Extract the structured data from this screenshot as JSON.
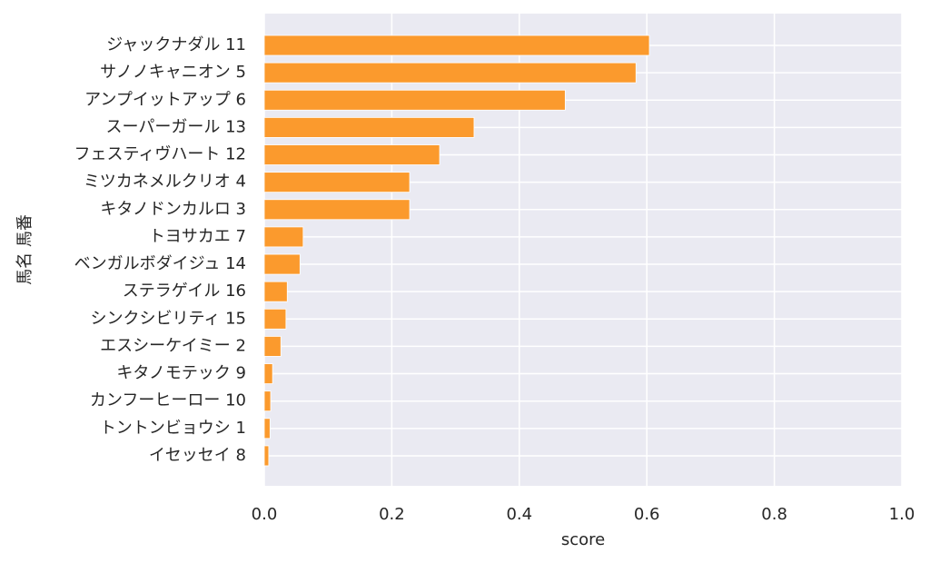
{
  "chart_data": {
    "type": "barh",
    "categories": [
      "ジャックナダル 11",
      "サノノキャニオン 5",
      "アンプイットアップ 6",
      "スーパーガール 13",
      "フェスティヴハート 12",
      "ミツカネメルクリオ 4",
      "キタノドンカルロ 3",
      "トヨサカエ 7",
      "ベンガルボダイジュ 14",
      "ステラゲイル 16",
      "シンクシビリティ 15",
      "エスシーケイミー 2",
      "キタノモテック 9",
      "カンフーヒーロー 10",
      "トントンビョウシ 1",
      "イセッセイ 8"
    ],
    "values": [
      0.604,
      0.583,
      0.472,
      0.329,
      0.275,
      0.228,
      0.228,
      0.061,
      0.056,
      0.036,
      0.034,
      0.026,
      0.013,
      0.01,
      0.009,
      0.007
    ],
    "color": "#fb9a2d",
    "xlabel": "score",
    "ylabel": "馬名 馬番",
    "xlim": [
      0,
      1
    ],
    "xticks": [
      {
        "value": 0,
        "label": "0.0"
      },
      0.2,
      0.4,
      0.6,
      0.8,
      {
        "value": 1,
        "label": "1.0"
      }
    ],
    "grid": true
  }
}
